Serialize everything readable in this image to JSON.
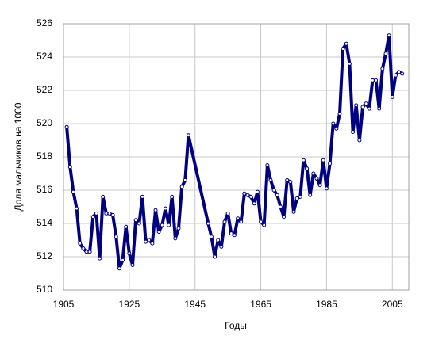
{
  "chart_data": {
    "type": "line",
    "x_label": "Годы",
    "y_label": "Доля мальчиков на 1000",
    "color": "#000080",
    "x": [
      1906,
      1907,
      1908,
      1909,
      1910,
      1911,
      1912,
      1913,
      1914,
      1915,
      1916,
      1917,
      1918,
      1919,
      1920,
      1921,
      1922,
      1923,
      1924,
      1925,
      1926,
      1927,
      1928,
      1929,
      1930,
      1931,
      1932,
      1933,
      1934,
      1935,
      1936,
      1937,
      1938,
      1939,
      1940,
      1941,
      1942,
      1943,
      1949,
      1950,
      1951,
      1952,
      1953,
      1954,
      1955,
      1956,
      1957,
      1958,
      1959,
      1960,
      1961,
      1962,
      1963,
      1964,
      1965,
      1966,
      1967,
      1968,
      1969,
      1970,
      1971,
      1972,
      1973,
      1974,
      1975,
      1976,
      1977,
      1978,
      1979,
      1980,
      1981,
      1982,
      1983,
      1984,
      1985,
      1986,
      1987,
      1988,
      1989,
      1990,
      1991,
      1992,
      1993,
      1994,
      1995,
      1996,
      1997,
      1998,
      1999,
      2000,
      2001,
      2002,
      2003,
      2004,
      2005,
      2006,
      2007,
      2008
    ],
    "values": [
      519.8,
      517.4,
      515.9,
      514.9,
      512.8,
      512.5,
      512.3,
      512.3,
      514.4,
      514.6,
      511.9,
      515.6,
      514.6,
      514.6,
      514.5,
      513.2,
      511.3,
      511.8,
      513.8,
      512.2,
      511.5,
      514.2,
      514.0,
      515.6,
      512.9,
      513.0,
      512.8,
      514.8,
      513.5,
      513.9,
      514.9,
      513.9,
      515.6,
      513.1,
      513.7,
      516.2,
      516.6,
      519.3,
      514.0,
      513.2,
      512.0,
      513.0,
      512.6,
      514.1,
      514.6,
      513.4,
      513.3,
      514.3,
      514.1,
      515.8,
      515.7,
      515.6,
      515.2,
      515.9,
      514.1,
      513.9,
      517.5,
      516.6,
      516.0,
      515.7,
      515.0,
      514.4,
      516.6,
      516.5,
      514.7,
      515.5,
      515.6,
      517.8,
      517.3,
      515.7,
      517.0,
      516.7,
      516.3,
      517.8,
      516.1,
      517.6,
      520.0,
      519.7,
      520.6,
      524.5,
      524.8,
      523.6,
      519.5,
      521.1,
      519.0,
      521.0,
      521.2,
      520.9,
      522.6,
      522.6,
      520.9,
      523.3,
      524.2,
      525.3,
      521.6,
      522.9,
      523.1,
      523.0
    ],
    "xlim": [
      1905,
      2010
    ],
    "xticks": [
      1905,
      1925,
      1945,
      1965,
      1985,
      2005
    ],
    "ylim": [
      510,
      526
    ],
    "yticks": [
      510,
      512,
      514,
      516,
      518,
      520,
      522,
      524,
      526
    ],
    "grid": true
  }
}
